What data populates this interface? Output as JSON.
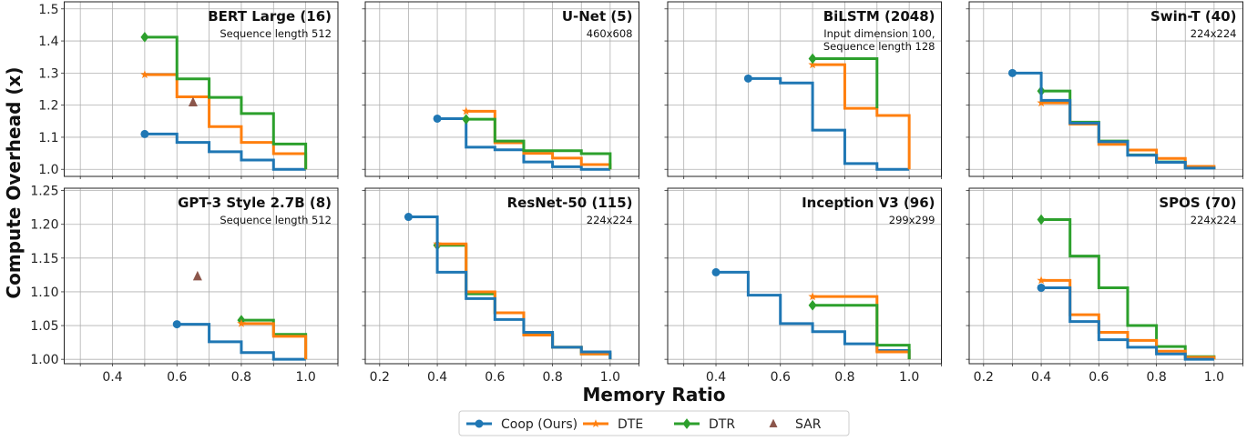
{
  "chart_data": {
    "type": "line",
    "step": "post",
    "grid": true,
    "xlabel": "Memory Ratio",
    "ylabel": "Compute Overhead (x)",
    "legend": {
      "placement": "bottom-center",
      "entries": [
        {
          "name": "Coop (Ours)",
          "color": "#1f77b4",
          "marker": "circle"
        },
        {
          "name": "DTE",
          "color": "#ff7f0e",
          "marker": "star"
        },
        {
          "name": "DTR",
          "color": "#2ca02c",
          "marker": "diamond"
        },
        {
          "name": "SAR",
          "color": "#8c564b",
          "marker": "triangle"
        }
      ]
    },
    "rows": [
      {
        "ylim": [
          0.978,
          1.522
        ],
        "yticks": [
          1.0,
          1.1,
          1.2,
          1.3,
          1.4,
          1.5
        ],
        "ytick_labels": [
          "1.0",
          "1.1",
          "1.2",
          "1.3",
          "1.4",
          "1.5"
        ]
      },
      {
        "ylim": [
          0.9935,
          1.2535
        ],
        "yticks": [
          1.0,
          1.05,
          1.1,
          1.15,
          1.2,
          1.25
        ],
        "ytick_labels": [
          "1.00",
          "1.05",
          "1.10",
          "1.15",
          "1.20",
          "1.25"
        ]
      }
    ],
    "columns": [
      {
        "xlim": [
          0.25,
          1.1
        ],
        "xticks": [
          0.4,
          0.6,
          0.8,
          1.0
        ],
        "xtick_labels": [
          "0.4",
          "0.6",
          "0.8",
          "1.0"
        ]
      },
      {
        "xlim": [
          0.15,
          1.1
        ],
        "xticks": [
          0.2,
          0.4,
          0.6,
          0.8,
          1.0
        ],
        "xtick_labels": [
          "0.2",
          "0.4",
          "0.6",
          "0.8",
          "1.0"
        ]
      },
      {
        "xlim": [
          0.25,
          1.1
        ],
        "xticks": [
          0.4,
          0.6,
          0.8,
          1.0
        ],
        "xtick_labels": [
          "0.4",
          "0.6",
          "0.8",
          "1.0"
        ]
      },
      {
        "xlim": [
          0.15,
          1.1
        ],
        "xticks": [
          0.2,
          0.4,
          0.6,
          0.8,
          1.0
        ],
        "xtick_labels": [
          "0.2",
          "0.4",
          "0.6",
          "0.8",
          "1.0"
        ]
      }
    ],
    "panels": [
      {
        "title": "BERT Large (16)",
        "subtitle": [
          "Sequence length 512"
        ],
        "row": 0,
        "col": 0,
        "series": [
          {
            "name": "Coop (Ours)",
            "x": [
              0.5,
              0.6,
              0.7,
              0.8,
              0.9,
              1.0
            ],
            "y": [
              1.11,
              1.084,
              1.055,
              1.029,
              1.0,
              1.0
            ]
          },
          {
            "name": "DTE",
            "x": [
              0.5,
              0.6,
              0.7,
              0.8,
              0.9,
              1.0
            ],
            "y": [
              1.295,
              1.226,
              1.133,
              1.084,
              1.049,
              1.0
            ]
          },
          {
            "name": "DTR",
            "x": [
              0.5,
              0.6,
              0.7,
              0.8,
              0.9,
              1.0
            ],
            "y": [
              1.412,
              1.282,
              1.224,
              1.174,
              1.079,
              1.0
            ]
          }
        ],
        "sar": {
          "x": 0.65,
          "y": 1.209
        }
      },
      {
        "title": "U-Net (5)",
        "subtitle": [
          "460x608"
        ],
        "row": 0,
        "col": 1,
        "series": [
          {
            "name": "Coop (Ours)",
            "x": [
              0.4,
              0.5,
              0.6,
              0.7,
              0.8,
              0.9,
              1.0
            ],
            "y": [
              1.158,
              1.069,
              1.061,
              1.023,
              1.008,
              1.0,
              1.0
            ]
          },
          {
            "name": "DTE",
            "x": [
              0.5,
              0.6,
              0.7,
              0.8,
              0.9,
              1.0
            ],
            "y": [
              1.181,
              1.083,
              1.05,
              1.035,
              1.015,
              1.0
            ]
          },
          {
            "name": "DTR",
            "x": [
              0.5,
              0.6,
              0.7,
              0.8,
              0.9,
              1.0
            ],
            "y": [
              1.156,
              1.088,
              1.058,
              1.058,
              1.049,
              1.0
            ]
          }
        ]
      },
      {
        "title": "BiLSTM (2048)",
        "subtitle": [
          "Input dimension 100,",
          "Sequence length 128"
        ],
        "row": 0,
        "col": 2,
        "series": [
          {
            "name": "Coop (Ours)",
            "x": [
              0.5,
              0.6,
              0.7,
              0.8,
              0.9,
              1.0
            ],
            "y": [
              1.283,
              1.269,
              1.122,
              1.018,
              1.0,
              1.0
            ]
          },
          {
            "name": "DTE",
            "x": [
              0.7,
              0.8,
              0.9,
              1.0
            ],
            "y": [
              1.326,
              1.19,
              1.168,
              1.0
            ]
          },
          {
            "name": "DTR",
            "x": [
              0.7,
              0.8,
              0.9
            ],
            "y": [
              1.345,
              1.345,
              1.19
            ]
          }
        ]
      },
      {
        "title": "Swin-T (40)",
        "subtitle": [
          "224x224"
        ],
        "row": 0,
        "col": 3,
        "series": [
          {
            "name": "DTR",
            "x": [
              0.4,
              0.5,
              0.6,
              0.7,
              0.8,
              0.9,
              1.0
            ],
            "y": [
              1.244,
              1.147,
              1.088,
              1.045,
              1.023,
              1.005,
              1.0
            ]
          },
          {
            "name": "DTE",
            "x": [
              0.4,
              0.5,
              0.6,
              0.7,
              0.8,
              0.9,
              1.0
            ],
            "y": [
              1.207,
              1.141,
              1.078,
              1.06,
              1.034,
              1.009,
              1.0
            ]
          },
          {
            "name": "Coop (Ours)",
            "x": [
              0.3,
              0.4,
              0.5,
              0.6,
              0.7,
              0.8,
              0.9,
              1.0
            ],
            "y": [
              1.3,
              1.215,
              1.144,
              1.086,
              1.044,
              1.022,
              1.004,
              1.0
            ]
          }
        ]
      },
      {
        "title": "GPT-3 Style 2.7B (8)",
        "subtitle": [
          "Sequence length 512"
        ],
        "row": 1,
        "col": 0,
        "series": [
          {
            "name": "Coop (Ours)",
            "x": [
              0.6,
              0.7,
              0.8,
              0.9,
              1.0
            ],
            "y": [
              1.052,
              1.026,
              1.01,
              1.0,
              1.0
            ]
          },
          {
            "name": "DTR",
            "x": [
              0.8,
              0.9,
              1.0
            ],
            "y": [
              1.058,
              1.037,
              1.0
            ]
          },
          {
            "name": "DTE",
            "x": [
              0.8,
              0.9,
              1.0
            ],
            "y": [
              1.053,
              1.034,
              1.0
            ]
          }
        ],
        "sar": {
          "x": 0.664,
          "y": 1.123
        }
      },
      {
        "title": "ResNet-50 (115)",
        "subtitle": [
          "224x224"
        ],
        "row": 1,
        "col": 1,
        "series": [
          {
            "name": "DTR",
            "x": [
              0.4,
              0.5,
              0.6,
              0.7,
              0.8,
              0.9,
              1.0
            ],
            "y": [
              1.169,
              1.097,
              1.069,
              1.037,
              1.018,
              1.008,
              1.0
            ]
          },
          {
            "name": "DTE",
            "x": [
              0.4,
              0.5,
              0.6,
              0.7,
              0.8,
              0.9,
              1.0
            ],
            "y": [
              1.171,
              1.1,
              1.069,
              1.036,
              1.018,
              1.008,
              1.0
            ]
          },
          {
            "name": "Coop (Ours)",
            "x": [
              0.3,
              0.4,
              0.5,
              0.6,
              0.7,
              0.8,
              0.9,
              1.0
            ],
            "y": [
              1.211,
              1.129,
              1.09,
              1.059,
              1.04,
              1.018,
              1.011,
              1.0
            ]
          }
        ]
      },
      {
        "title": "Inception V3 (96)",
        "subtitle": [
          "299x299"
        ],
        "row": 1,
        "col": 2,
        "series": [
          {
            "name": "Coop (Ours)",
            "x": [
              0.4,
              0.5,
              0.6,
              0.7,
              0.8,
              0.9,
              1.0
            ],
            "y": [
              1.129,
              1.095,
              1.053,
              1.041,
              1.023,
              1.013,
              1.0
            ]
          },
          {
            "name": "DTE",
            "x": [
              0.7,
              0.8,
              0.9,
              1.0
            ],
            "y": [
              1.093,
              1.093,
              1.011,
              1.0
            ]
          },
          {
            "name": "DTR",
            "x": [
              0.7,
              0.8,
              0.9,
              1.0
            ],
            "y": [
              1.08,
              1.08,
              1.021,
              1.0
            ]
          }
        ]
      },
      {
        "title": "SPOS (70)",
        "subtitle": [
          "224x224"
        ],
        "row": 1,
        "col": 3,
        "series": [
          {
            "name": "DTR",
            "x": [
              0.4,
              0.5,
              0.6,
              0.7,
              0.8,
              0.9,
              1.0
            ],
            "y": [
              1.207,
              1.153,
              1.106,
              1.05,
              1.019,
              1.004,
              1.0
            ]
          },
          {
            "name": "DTE",
            "x": [
              0.4,
              0.5,
              0.6,
              0.7,
              0.8,
              0.9,
              1.0
            ],
            "y": [
              1.117,
              1.066,
              1.04,
              1.028,
              1.012,
              1.003,
              1.0
            ]
          },
          {
            "name": "Coop (Ours)",
            "x": [
              0.4,
              0.5,
              0.6,
              0.7,
              0.8,
              0.9,
              1.0
            ],
            "y": [
              1.106,
              1.056,
              1.029,
              1.018,
              1.008,
              1.0,
              1.0
            ]
          }
        ]
      }
    ]
  }
}
